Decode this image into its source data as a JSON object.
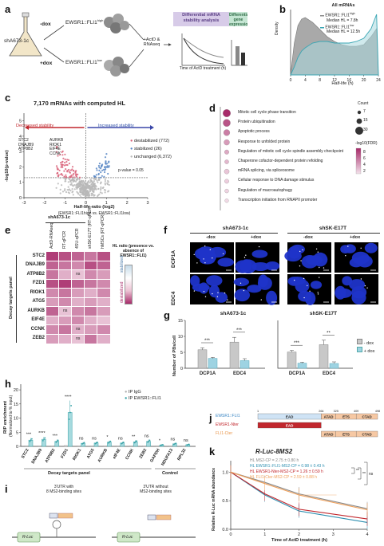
{
  "panel_labels": {
    "a": "a",
    "b": "b",
    "c": "c",
    "d": "d",
    "e": "e",
    "f": "f",
    "g": "g",
    "h": "h",
    "i": "i",
    "j": "j",
    "k": "k"
  },
  "panel_a": {
    "cell_line": "shA673-1c",
    "minus_dox": "-dox",
    "plus_dox": "+dox",
    "ews_high": "EWSR1::FLI1",
    "ews_high_sup": "high",
    "ews_low": "EWSR1::FLI1",
    "ews_low_sup": "low",
    "treatment": "+ActD &",
    "treatment2": "RNAseq",
    "box1": "Differential mRNA stability analysis",
    "box2": "Differential gene expression analysis",
    "ylabel_left": "Relative mRNA abundance",
    "ylabel_right": "Steady-state mRNA levels",
    "xlabel": "Time of ActD treatment (h)"
  },
  "panel_b": {
    "title": "All mRNAs",
    "xlabel": "Half-life (h)",
    "ylabel": "Density",
    "legend": [
      {
        "name": "EWSR1::FLI1",
        "sup": "high",
        "sub": "Median HL = 7.8h",
        "color": "#8a8a8a"
      },
      {
        "name": "EWSR1::FLI1",
        "sup": "low",
        "sub": "Median HL = 12.5h",
        "color": "#3aa6b4"
      }
    ],
    "xticks": [
      "0",
      "4",
      "8",
      "12",
      "16",
      "20",
      "24"
    ]
  },
  "panel_c": {
    "title": "7,170 mRNAs with computed HL",
    "decreased": "Decreased stability",
    "increased": "Increased stability",
    "ylabel": "-log10(p-value)",
    "xlabel": "Half-life ratio (log2)",
    "xlabel2": "(EWSR1::FLI1high vs. EWSR1::FLI1low)",
    "pval_line": "p-value = 0.05",
    "legend": [
      {
        "label": "destabilized (772)",
        "color": "#d9637a"
      },
      {
        "label": "stabilized (26)",
        "color": "#5a88c6"
      },
      {
        "label": "unchanged (6,372)",
        "color": "#b8b8b8"
      }
    ],
    "genes": [
      "STC2",
      "DNAJB9",
      "ATP8B2",
      "AURKB",
      "RIOK1",
      "EIF4E",
      "CCNK",
      "ZEB2"
    ],
    "xticks": [
      "-3",
      "-2",
      "-1",
      "0",
      "1",
      "2",
      "3"
    ],
    "yticks": [
      "0",
      "1",
      "2",
      "3",
      "4",
      "5"
    ]
  },
  "panel_d": {
    "terms": [
      "Mitotic cell cycle phase transition",
      "Protein ubiquitination",
      "Apoptotic process",
      "Response to unfolded protein",
      "Regulation of mitotic cell cycle spindle assembly checkpoint",
      "Chaperone cofactor-dependent protein refolding",
      "mRNA splicing, via spliceosome",
      "Cellular response to DNA damage stimulus",
      "Regulation of macroautophagy",
      "Transcription initiation from RNAPII promoter"
    ],
    "count_title": "Count",
    "counts": [
      "7",
      "15",
      "30"
    ],
    "fdr_title": "-log10(FDR)",
    "fdr_ticks": [
      "8",
      "6",
      "4",
      "2"
    ]
  },
  "panel_e": {
    "group": "shA673-1c",
    "columns": [
      "ActD-RNAseq",
      "RT-qPCR",
      "4SU-qPCR",
      "shSK-E17T (RT-qPCR)",
      "hMSCs (RT-qPCR)"
    ],
    "rows": [
      "STC2",
      "DNAJB9",
      "ATP8B2",
      "FZD1",
      "RIOK1",
      "ATG5",
      "AURKB",
      "EIF4E",
      "CCNK",
      "ZEB2"
    ],
    "ns_label": "ns",
    "side_label": "Decay targets panel",
    "legend_title": "HL ratio (presence vs. absence of EWSR1::FLI1)",
    "legend_hi": "stabilized",
    "legend_lo": "destabilized"
  },
  "panel_f": {
    "groups": [
      "shA673-1c",
      "shSK-E17T"
    ],
    "conds": [
      "-dox",
      "+dox",
      "-dox",
      "+dox"
    ],
    "rows": [
      "DCP1A",
      "EDC4"
    ]
  },
  "panel_g": {
    "groups": [
      "shA673-1c",
      "shSK-E17T"
    ],
    "ylabel": "Number of PBs/cell",
    "yticks": [
      "0",
      "5",
      "10",
      "15"
    ],
    "categories": [
      "DCP1A",
      "EDC4",
      "DCP1A",
      "EDC4"
    ],
    "legend": [
      {
        "label": "- dox",
        "color": "#c8c8c8"
      },
      {
        "label": "+ dox",
        "color": "#9ed3e2"
      }
    ],
    "sig": [
      "***",
      "***",
      "***",
      "**"
    ]
  },
  "panel_h": {
    "ylabel": "RIP enrichment",
    "ylabel2": "(Normalized to % input)",
    "yticks": [
      "0",
      "5",
      "10",
      "15",
      "20"
    ],
    "legend": [
      {
        "label": "IP IgG",
        "color": "#b0b0b0"
      },
      {
        "label": "IP EWSR1::FLI1",
        "color": "#38a3a8"
      }
    ],
    "genes": [
      "STC2",
      "DNAJB9",
      "ATP8B2",
      "FZD1",
      "RIOK1",
      "ATG5",
      "AURKB",
      "eIF4E",
      "CCNK",
      "ZEB2",
      "GAPDH",
      "NDUFA13",
      "RPL32"
    ],
    "sig": [
      "***",
      "****",
      "***",
      "****",
      "ns",
      "ns",
      "*",
      "ns",
      "**",
      "ns",
      "*",
      "ns",
      "ns"
    ],
    "group1": "Decay targets panel",
    "group2": "Control"
  },
  "panel_i": {
    "left_title": "3'UTR with",
    "left_title2": "8 MS2-binding sites",
    "right_title": "3'UTR without",
    "right_title2": "MS2-binding sites",
    "rluc": "R-Luc",
    "ms2cp": "MS2CP"
  },
  "panel_j": {
    "constructs": [
      "EWSR1::FLI1",
      "EWSR1-Nter",
      "FLI1-Cter"
    ],
    "domains": [
      "EAD",
      "ATAD",
      "ETS",
      "CTAD"
    ],
    "positions": [
      "1",
      "264",
      "325",
      "409",
      "498"
    ]
  },
  "panel_k": {
    "title": "R-Luc-8MS2",
    "ylabel": "Relative R-Luc mRNA abundance",
    "xlabel": "Time of ActD treatment (h)",
    "yticks": [
      "0.0",
      "0.5",
      "1.0"
    ],
    "xticks": [
      "0",
      "1",
      "2",
      "3",
      "4"
    ],
    "legend": [
      {
        "label": "HL MS2-CP = 2.75 ± 0.80 h",
        "color": "#888888"
      },
      {
        "label": "HL EWSR1::FLI1-MS2-CP = 0.98 ± 0.43 h",
        "color": "#2e8fb0"
      },
      {
        "label": "HL EWSR1-Nter-MS2-CP = 1.26 ± 0.59 h",
        "color": "#c1272d"
      },
      {
        "label": "HL FLI1-Cter-MS2-CP = 2.59 ± 0.88 h",
        "color": "#f0a05a"
      }
    ],
    "sig": [
      "**",
      "**",
      "ns"
    ]
  }
}
